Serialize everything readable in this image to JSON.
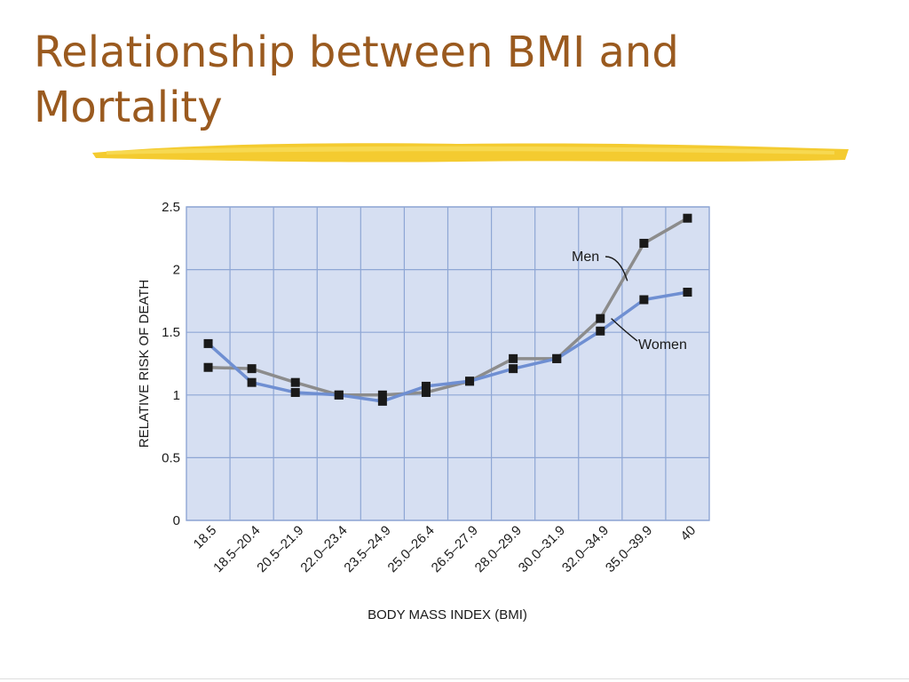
{
  "slide": {
    "title": "Relationship between BMI and Mortality"
  },
  "colors": {
    "title": "#9a5a1f",
    "brush": "#f3c519",
    "plot_background": "#d6dff2",
    "grid": "#8ea6d4",
    "men_line": "#8c8c8c",
    "women_line": "#6f8fd2",
    "marker": "#1a1a1a"
  },
  "chart_data": {
    "type": "line",
    "xlabel": "BODY MASS INDEX (BMI)",
    "ylabel": "RELATIVE RISK OF DEATH",
    "categories": [
      "18.5",
      "18.5–20.4",
      "20.5–21.9",
      "22.0–23.4",
      "23.5–24.9",
      "25.0–26.4",
      "26.5–27.9",
      "28.0–29.9",
      "30.0–31.9",
      "32.0–34.9",
      "35.0–39.9",
      "40"
    ],
    "ylim": [
      0,
      2.5
    ],
    "yticks": [
      "0",
      "0.5",
      "1",
      "1.5",
      "2",
      "2.5"
    ],
    "grid": true,
    "series": [
      {
        "name": "Men",
        "values": [
          1.22,
          1.21,
          1.1,
          1.0,
          1.0,
          1.02,
          1.11,
          1.29,
          1.29,
          1.61,
          2.21,
          2.41
        ]
      },
      {
        "name": "Women",
        "values": [
          1.41,
          1.1,
          1.02,
          1.0,
          0.95,
          1.07,
          1.11,
          1.21,
          1.29,
          1.51,
          1.76,
          1.82
        ]
      }
    ]
  }
}
